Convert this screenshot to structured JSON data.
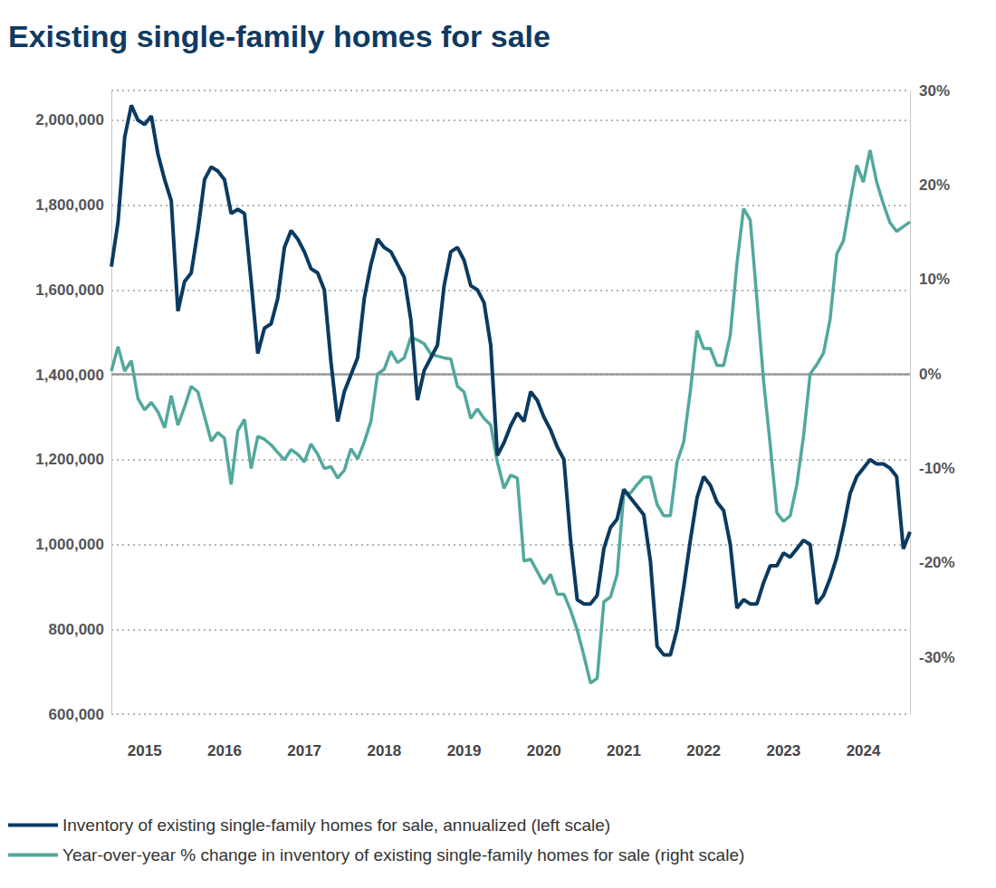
{
  "chart_data": {
    "type": "line",
    "title": "Existing single-family homes for sale",
    "categories": [
      null,
      null,
      null,
      null,
      null,
      "2015",
      null,
      null,
      null,
      null,
      null,
      null,
      null,
      null,
      null,
      null,
      null,
      "2016",
      null,
      null,
      null,
      null,
      null,
      null,
      null,
      null,
      null,
      null,
      null,
      "2017",
      null,
      null,
      null,
      null,
      null,
      null,
      null,
      null,
      null,
      null,
      null,
      "2018",
      null,
      null,
      null,
      null,
      null,
      null,
      null,
      null,
      null,
      null,
      null,
      "2019",
      null,
      null,
      null,
      null,
      null,
      null,
      null,
      null,
      null,
      null,
      null,
      "2020",
      null,
      null,
      null,
      null,
      null,
      null,
      null,
      null,
      null,
      null,
      null,
      "2021",
      null,
      null,
      null,
      null,
      null,
      null,
      null,
      null,
      null,
      null,
      null,
      "2022",
      null,
      null,
      null,
      null,
      null,
      null,
      null,
      null,
      null,
      null,
      null,
      "2023",
      null,
      null,
      null,
      null,
      null,
      null,
      null,
      null,
      null,
      null,
      null,
      "2024",
      null,
      null,
      null,
      null,
      null,
      null,
      null
    ],
    "series": [
      {
        "name": "Inventory of existing single-family homes for sale, annualized (left scale)",
        "color": "#0b3a60",
        "axis": "y",
        "values": [
          1655000,
          1760000,
          1960000,
          2035000,
          2000000,
          1990000,
          2010000,
          1920000,
          1860000,
          1810000,
          1550000,
          1620000,
          1640000,
          1740000,
          1860000,
          1890000,
          1880000,
          1860000,
          1780000,
          1790000,
          1780000,
          1620000,
          1450000,
          1510000,
          1520000,
          1580000,
          1700000,
          1740000,
          1720000,
          1690000,
          1650000,
          1640000,
          1600000,
          1430000,
          1290000,
          1360000,
          1400000,
          1440000,
          1580000,
          1660000,
          1720000,
          1700000,
          1690000,
          1660000,
          1630000,
          1530000,
          1340000,
          1410000,
          1440000,
          1470000,
          1610000,
          1690000,
          1700000,
          1670000,
          1610000,
          1600000,
          1570000,
          1470000,
          1210000,
          1240000,
          1280000,
          1310000,
          1290000,
          1360000,
          1340000,
          1300000,
          1270000,
          1230000,
          1200000,
          1010000,
          870000,
          860000,
          860000,
          880000,
          990000,
          1040000,
          1060000,
          1130000,
          1110000,
          1090000,
          1070000,
          960000,
          760000,
          740000,
          740000,
          800000,
          900000,
          1010000,
          1110000,
          1160000,
          1140000,
          1100000,
          1080000,
          1000000,
          850000,
          870000,
          860000,
          860000,
          910000,
          950000,
          950000,
          980000,
          970000,
          990000,
          1010000,
          1000000,
          860000,
          880000,
          920000,
          970000,
          1040000,
          1120000,
          1160000,
          1180000,
          1200000,
          1190000,
          1190000,
          1180000,
          1160000,
          990000,
          1030000
        ]
      },
      {
        "name": "Year-over-year % change in inventory of existing single-family homes for sale (right scale)",
        "color": "#52a89c",
        "axis": "y2",
        "values": [
          0.3,
          2.9,
          0.3,
          1.4,
          -2.6,
          -3.8,
          -3.0,
          -4.0,
          -5.7,
          -2.3,
          -5.4,
          -3.5,
          -1.3,
          -1.9,
          -4.5,
          -7.1,
          -6.2,
          -6.8,
          -11.7,
          -6.0,
          -4.8,
          -10.0,
          -6.6,
          -6.9,
          -7.5,
          -8.3,
          -9.1,
          -8.0,
          -8.5,
          -9.3,
          -7.4,
          -8.5,
          -10.0,
          -9.8,
          -11.0,
          -10.2,
          -7.9,
          -9.0,
          -7.2,
          -5.0,
          0.0,
          0.5,
          2.4,
          1.2,
          1.7,
          3.9,
          3.6,
          3.2,
          2.1,
          1.9,
          1.7,
          1.6,
          -1.3,
          -1.9,
          -4.7,
          -3.7,
          -4.7,
          -5.4,
          -9.3,
          -12.1,
          -10.7,
          -11.0,
          -19.8,
          -19.6,
          -20.9,
          -22.2,
          -21.2,
          -23.3,
          -23.3,
          -25.0,
          -27.1,
          -29.8,
          -32.7,
          -32.2,
          -24.1,
          -23.6,
          -21.2,
          -12.6,
          -12.6,
          -11.7,
          -10.9,
          -10.9,
          -13.8,
          -15.0,
          -15.0,
          -9.3,
          -7.2,
          -1.8,
          4.6,
          2.7,
          2.7,
          0.9,
          0.9,
          4.1,
          11.7,
          17.5,
          16.3,
          7.9,
          -0.7,
          -7.5,
          -14.7,
          -15.6,
          -15.0,
          -11.7,
          -6.6,
          0.0,
          1.0,
          2.2,
          5.8,
          12.7,
          14.1,
          18.2,
          22.1,
          20.3,
          23.7,
          20.3,
          18.0,
          16.0,
          15.1,
          15.6,
          16.1
        ]
      }
    ],
    "ylim": [
      600000,
      2070000
    ],
    "yticks": [
      {
        "value": 600000,
        "label": "600,000"
      },
      {
        "value": 800000,
        "label": "800,000"
      },
      {
        "value": 1000000,
        "label": "1,000,000"
      },
      {
        "value": 1200000,
        "label": "1,200,000"
      },
      {
        "value": 1400000,
        "label": "1,400,000"
      },
      {
        "value": 1600000,
        "label": "1,600,000"
      },
      {
        "value": 1800000,
        "label": "1,800,000"
      },
      {
        "value": 2000000,
        "label": "2,000,000"
      }
    ],
    "y2lim": [
      -36,
      30
    ],
    "y2ticks": [
      {
        "value": -30,
        "label": "-30%"
      },
      {
        "value": -20,
        "label": "-20%"
      },
      {
        "value": -10,
        "label": "-10%"
      },
      {
        "value": 0,
        "label": "0%"
      },
      {
        "value": 10,
        "label": "10%"
      },
      {
        "value": 20,
        "label": "20%"
      },
      {
        "value": 30,
        "label": "30%"
      }
    ],
    "grid": true,
    "legend": "bottom-left"
  }
}
